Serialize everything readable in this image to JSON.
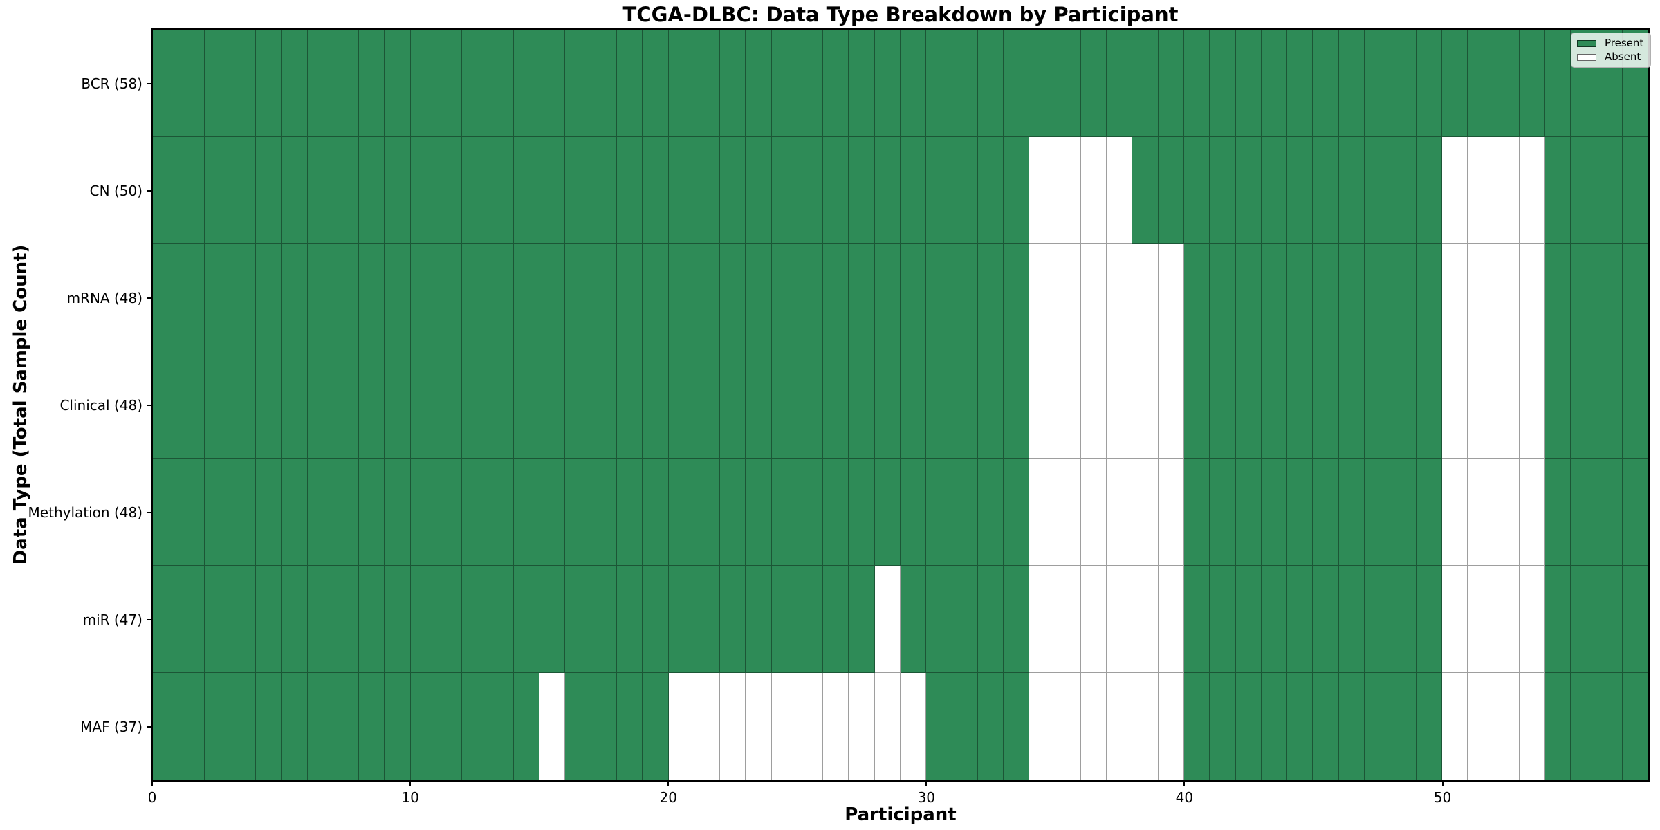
{
  "figure": {
    "title": "TCGA-DLBC: Data Type Breakdown by Participant",
    "xlabel": "Participant",
    "ylabel": "Data Type (Total Sample Count)"
  },
  "colors": {
    "present": "#2e8b57",
    "absent": "#ffffff",
    "cell_edge": "rgba(0,0,0,0.38)",
    "spine": "#000000",
    "legend_border": "#b0b0b0"
  },
  "legend": {
    "position": "upper right",
    "items": [
      {
        "label": "Present",
        "color": "#2e8b57"
      },
      {
        "label": "Absent",
        "color": "#ffffff"
      }
    ]
  },
  "chart_data": {
    "type": "heatmap",
    "title": "TCGA-DLBC: Data Type Breakdown by Participant",
    "xlabel": "Participant",
    "ylabel": "Data Type (Total Sample Count)",
    "n_participants": 58,
    "x_tick_values": [
      0,
      10,
      20,
      30,
      40,
      50
    ],
    "x_range": [
      0,
      58
    ],
    "grid": "cell-borders",
    "legend_entries": [
      "Present",
      "Absent"
    ],
    "rows": [
      {
        "label": "BCR (58)",
        "data_type": "BCR",
        "total": 58,
        "absent_participants": []
      },
      {
        "label": "CN (50)",
        "data_type": "CN",
        "total": 50,
        "absent_participants": [
          34,
          35,
          36,
          37,
          50,
          51,
          52,
          53
        ]
      },
      {
        "label": "mRNA (48)",
        "data_type": "mRNA",
        "total": 48,
        "absent_participants": [
          34,
          35,
          36,
          37,
          38,
          39,
          50,
          51,
          52,
          53
        ]
      },
      {
        "label": "Clinical (48)",
        "data_type": "Clinical",
        "total": 48,
        "absent_participants": [
          34,
          35,
          36,
          37,
          38,
          39,
          50,
          51,
          52,
          53
        ]
      },
      {
        "label": "Methylation (48)",
        "data_type": "Methylation",
        "total": 48,
        "absent_participants": [
          34,
          35,
          36,
          37,
          38,
          39,
          50,
          51,
          52,
          53
        ]
      },
      {
        "label": "miR (47)",
        "data_type": "miR",
        "total": 47,
        "absent_participants": [
          28,
          34,
          35,
          36,
          37,
          38,
          39,
          50,
          51,
          52,
          53
        ]
      },
      {
        "label": "MAF (37)",
        "data_type": "MAF",
        "total": 37,
        "absent_participants": [
          15,
          20,
          21,
          22,
          23,
          24,
          25,
          26,
          27,
          28,
          29,
          34,
          35,
          36,
          37,
          38,
          39,
          50,
          51,
          52,
          53
        ]
      }
    ]
  }
}
